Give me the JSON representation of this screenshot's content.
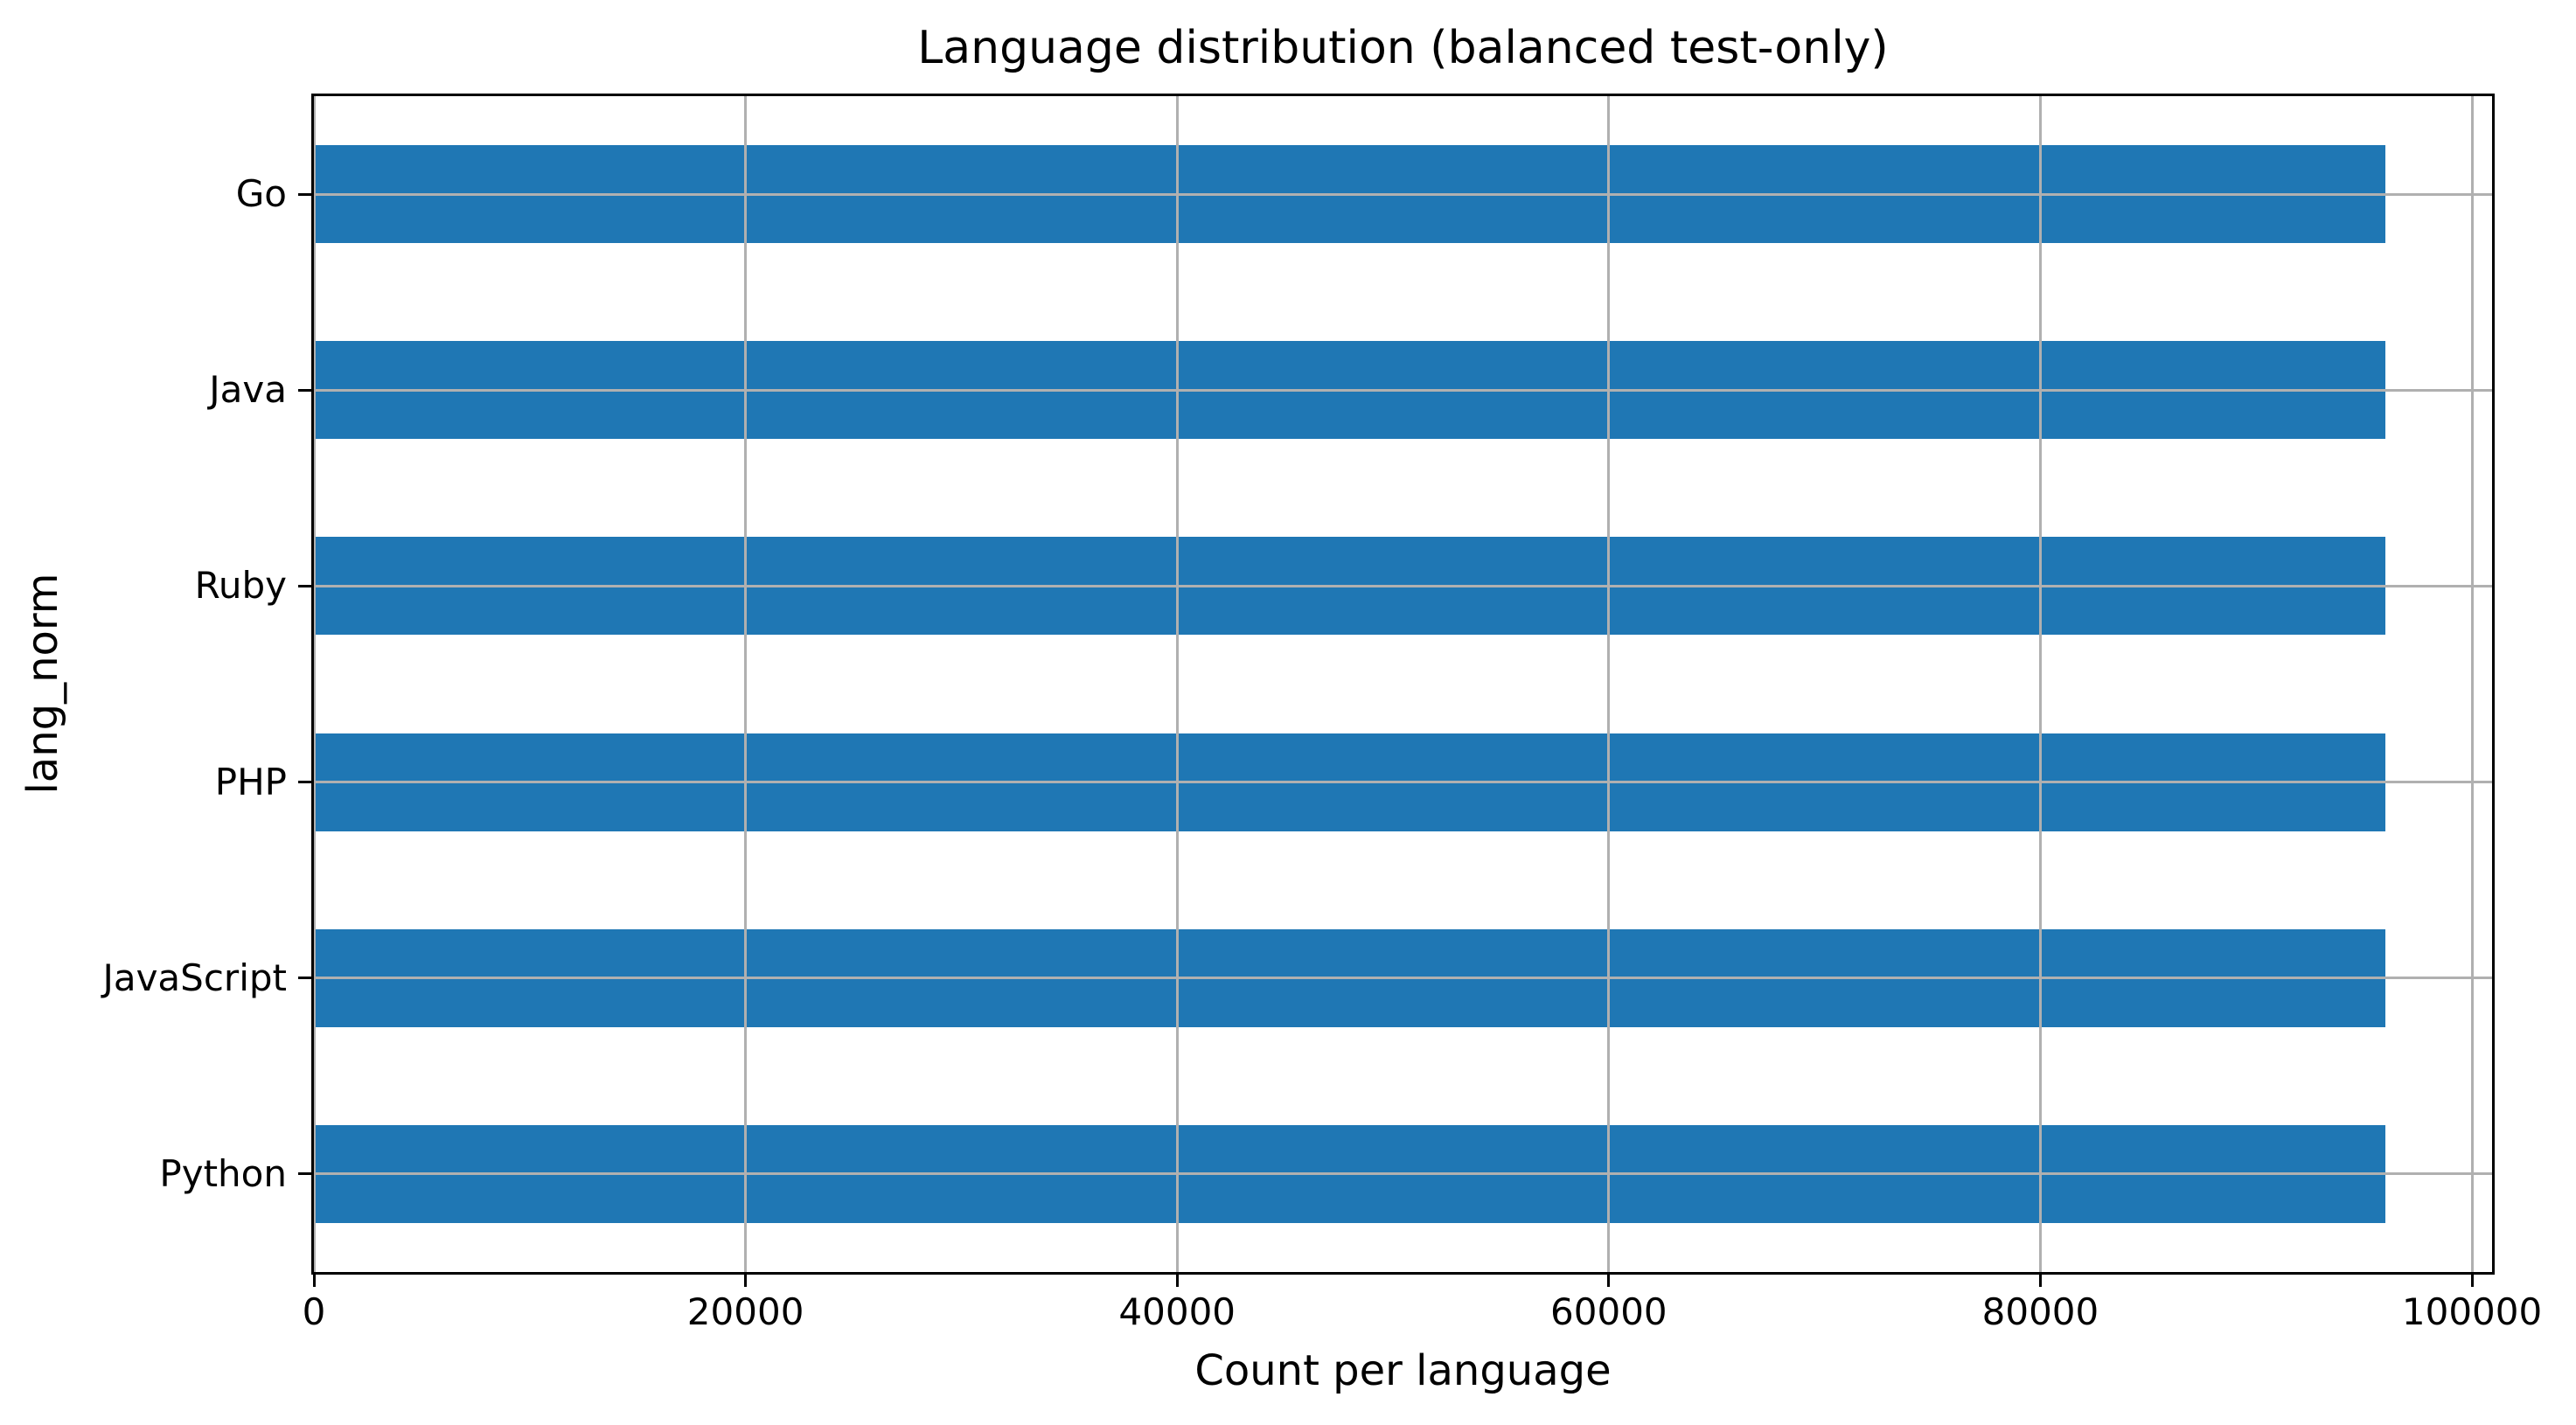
{
  "chart_data": {
    "type": "bar",
    "orientation": "horizontal",
    "title": "Language distribution (balanced test-only)",
    "xlabel": "Count per language",
    "ylabel": "lang_norm",
    "categories_top_to_bottom": [
      "Go",
      "Java",
      "Ruby",
      "PHP",
      "JavaScript",
      "Python"
    ],
    "values": [
      96000,
      96000,
      96000,
      96000,
      96000,
      96000
    ],
    "xticks": [
      0,
      20000,
      40000,
      60000,
      80000,
      100000
    ],
    "xlim": [
      0,
      100930
    ],
    "grid": true,
    "legend": false,
    "bar_color": "#1f77b4",
    "grid_color": "#b0b0b0",
    "bar_width_fraction": 0.5
  }
}
